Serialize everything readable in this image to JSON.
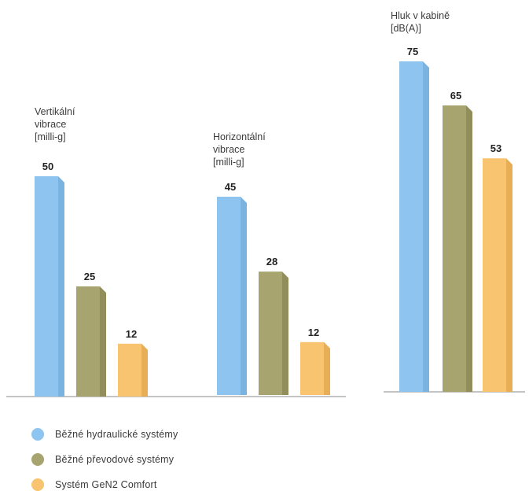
{
  "colors": {
    "hydraulic": "#8ec5f0",
    "mechanical": "#a7a470",
    "gen2": "#f8c46f",
    "label": "#3c3c3c",
    "value": "#222222",
    "baseline": "#8a8a8a"
  },
  "chart_data": {
    "type": "bar",
    "legend_position": "bottom-left",
    "series": [
      {
        "name": "Běžné hydraulické systémy"
      },
      {
        "name": "Běžné převodové systémy"
      },
      {
        "name": "Systém GeN2 Comfort"
      }
    ],
    "groups": [
      {
        "label_lines": [
          "Vertikální",
          "vibrace",
          "[milli-g]"
        ],
        "values": [
          50,
          25,
          12
        ]
      },
      {
        "label_lines": [
          "Horizontální",
          "vibrace",
          "[milli-g]"
        ],
        "values": [
          45,
          28,
          12
        ]
      },
      {
        "label_lines": [
          "Hluk v kabině",
          "[dB(A)]"
        ],
        "values": [
          75,
          65,
          53
        ]
      }
    ]
  },
  "legend": [
    {
      "label": "Běžné hydraulické systémy",
      "color": "#8ec5f0"
    },
    {
      "label": "Běžné převodové systémy",
      "color": "#a7a470"
    },
    {
      "label": "Systém GeN2 Comfort",
      "color": "#f8c46f"
    }
  ]
}
